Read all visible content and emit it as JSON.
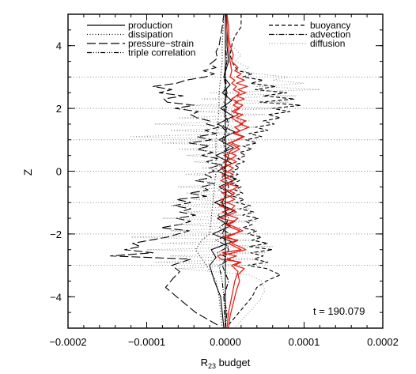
{
  "chart_data": {
    "type": "line",
    "orientation": "horizontal-profile",
    "xlabel_main": "R",
    "xlabel_sub": "23",
    "xlabel_rest": " budget",
    "ylabel": "Z",
    "xlim": [
      -0.0002,
      0.0002
    ],
    "ylim": [
      -5,
      5
    ],
    "x_ticks": [
      -0.0002,
      -0.0001,
      0.0,
      0.0001,
      0.0002
    ],
    "x_tick_labels": [
      "−0.0002",
      "−0.0001",
      "0.0000",
      "0.0001",
      "0.0002"
    ],
    "y_ticks": [
      -4,
      -2,
      0,
      2,
      4
    ],
    "y_tick_labels": [
      "−4",
      "−2",
      "0",
      "2",
      "4"
    ],
    "annotation": "t = 190.079",
    "legend_left": [
      {
        "name": "production",
        "dash": "solid"
      },
      {
        "name": "dissipation",
        "dash": "dotted"
      },
      {
        "name": "pressure−strain",
        "dash": "longdash"
      },
      {
        "name": "triple correlation",
        "dash": "dashdotdotdot"
      }
    ],
    "legend_right": [
      {
        "name": "buoyancy",
        "dash": "dashed"
      },
      {
        "name": "advection",
        "dash": "dashdot"
      },
      {
        "name": "diffusion",
        "dash": "dotted-grey"
      }
    ],
    "horizontal_reference_z": [
      -3,
      -2,
      -1,
      0,
      1,
      2,
      3
    ],
    "series": [
      {
        "name": "production",
        "color": "#000000",
        "z": [
          -5,
          -4.5,
          -4,
          -3.5,
          -3,
          -2.75,
          -2.5,
          -2.25,
          -2,
          -1.75,
          -1.5,
          -1.25,
          -1,
          -0.75,
          -0.5,
          -0.25,
          0,
          0.25,
          0.5,
          0.75,
          1,
          1.25,
          1.5,
          1.75,
          2,
          2.25,
          2.5,
          2.75,
          3,
          3.5,
          4,
          4.5,
          5
        ],
        "x": [
          -2e-06,
          -4e-06,
          -6e-06,
          -1.4e-05,
          -2e-05,
          -1.2e-05,
          -1.8e-05,
          8e-06,
          -1.6e-05,
          6e-06,
          -1e-05,
          1.2e-05,
          -1.4e-05,
          1e-05,
          -8e-06,
          1.4e-05,
          -1e-05,
          8e-06,
          -1.2e-05,
          1e-05,
          -8e-06,
          1.2e-05,
          -1e-05,
          1e-05,
          -6e-06,
          8e-06,
          -4e-06,
          6e-06,
          -2e-06,
          4e-06,
          2e-06,
          2e-06,
          1e-06
        ]
      },
      {
        "name": "dissipation",
        "color": "#000000",
        "z": [
          -5,
          -4,
          -3.5,
          -3,
          -2.5,
          -2.2,
          -2,
          -1.5,
          -1,
          -0.5,
          0,
          0.5,
          1,
          1.5,
          2,
          2.5,
          3,
          3.5,
          4,
          5
        ],
        "x": [
          -4e-06,
          -8e-06,
          -1.2e-05,
          -2.4e-05,
          -3.8e-05,
          -3e-05,
          -2e-05,
          -1.8e-05,
          -1.6e-05,
          -1.4e-05,
          -1.2e-05,
          -1.2e-05,
          -1.2e-05,
          -1e-05,
          -8e-06,
          -8e-06,
          -6e-06,
          -4e-06,
          -4e-06,
          -2e-06
        ]
      },
      {
        "name": "pressure−strain",
        "color": "#000000",
        "z": [
          -4.9,
          -4.5,
          -4,
          -3.7,
          -3.4,
          -3.2,
          -3,
          -2.8,
          -2.7,
          -2.6,
          -2.5,
          -2.4,
          -2.3,
          -2.2,
          -2.1,
          -2,
          -1.9,
          -1.8,
          -1.7,
          -1.6,
          -1.5,
          -1.4,
          -1.3,
          -1.2,
          -1.1,
          -1,
          -0.9,
          -0.8,
          -0.7,
          -0.6,
          -0.5,
          -0.4,
          -0.3,
          -0.2,
          -0.1,
          0,
          0.1,
          0.2,
          0.3,
          0.4,
          0.5,
          0.6,
          0.7,
          0.8,
          0.9,
          1,
          1.1,
          1.2,
          1.3,
          1.4,
          1.5,
          1.6,
          1.7,
          1.8,
          1.9,
          2,
          2.1,
          2.2,
          2.3,
          2.4,
          2.5,
          2.6,
          2.7,
          2.8,
          2.9,
          3,
          3.1,
          3.2,
          3.3,
          3.4,
          3.6,
          3.8,
          4,
          4.3,
          4.6,
          5
        ],
        "x": [
          -1e-05,
          -3.8e-05,
          -6.2e-05,
          -7.6e-05,
          -6.6e-05,
          -5.8e-05,
          -6.8e-05,
          -4.4e-05,
          -0.000146,
          -9.2e-05,
          -0.000128,
          -0.000108,
          -0.000118,
          -9.6e-05,
          -7.4e-05,
          -6e-05,
          -4.6e-05,
          -8.2e-05,
          -5.8e-05,
          -4.4e-05,
          -6.2e-05,
          -3.8e-05,
          -5.8e-05,
          -4.4e-05,
          -6.6e-05,
          -4.4e-05,
          -6.2e-05,
          -2.4e-05,
          -4.6e-05,
          -2.2e-05,
          -3e-05,
          -1.4e-05,
          -3.8e-05,
          -1.8e-05,
          -2.6e-05,
          -1.4e-05,
          -2e-05,
          -6e-06,
          -2.4e-05,
          -1e-05,
          -3e-05,
          -1.6e-05,
          -3.6e-05,
          -2e-05,
          -4.6e-05,
          -1.8e-05,
          -3.6e-05,
          -1.2e-05,
          -2.6e-05,
          -8e-06,
          -2.4e-05,
          -2e-05,
          -3.6e-05,
          -4.4e-05,
          -3.4e-05,
          -6.4e-05,
          -4e-05,
          -7.4e-05,
          -7.8e-05,
          -5.4e-05,
          -8.4e-05,
          -6.8e-05,
          -9.2e-05,
          -6.2e-05,
          -5e-05,
          -2.6e-05,
          -1.4e-05,
          -2.8e-05,
          -1.2e-05,
          -2e-05,
          -1e-05,
          -1.2e-05,
          -8e-06,
          -6e-06,
          -4e-06,
          -2e-06
        ]
      },
      {
        "name": "triple correlation",
        "color": "#000000",
        "z": [
          -5,
          -4,
          -3.5,
          -3,
          -2.8,
          -2.6,
          -2.4,
          -2.2,
          -2,
          -1.8,
          -1.6,
          -1.4,
          -1.2,
          -1,
          -0.8,
          -0.6,
          -0.4,
          -0.2,
          0,
          0.2,
          0.4,
          0.6,
          0.8,
          1,
          1.2,
          1.4,
          1.6,
          1.8,
          2,
          2.2,
          2.4,
          2.6,
          2.8,
          3,
          3.5,
          4,
          5
        ],
        "x": [
          0,
          -2e-06,
          -4e-06,
          -8e-06,
          6e-06,
          -1e-05,
          4e-06,
          -1.2e-05,
          6e-06,
          -8e-06,
          2e-06,
          -1e-05,
          4e-06,
          -6e-06,
          2e-06,
          -8e-06,
          4e-06,
          -4e-06,
          2e-06,
          -6e-06,
          4e-06,
          -4e-06,
          6e-06,
          -2e-06,
          4e-06,
          -4e-06,
          2e-06,
          -2e-06,
          2e-06,
          -2e-06,
          2e-06,
          -2e-06,
          1e-06,
          -1e-06,
          0,
          0,
          0
        ]
      },
      {
        "name": "buoyancy",
        "color": "#000000",
        "z": [
          -4.9,
          -4.6,
          -4.3,
          -4,
          -3.7,
          -3.5,
          -3.3,
          -3.1,
          -3,
          -2.9,
          -2.8,
          -2.7,
          -2.6,
          -2.5,
          -2.4,
          -2.3,
          -2.2,
          -2.1,
          -2,
          -1.9,
          -1.8,
          -1.7,
          -1.6,
          -1.5,
          -1.4,
          -1.3,
          -1.2,
          -1.1,
          -1,
          -0.9,
          -0.8,
          -0.7,
          -0.6,
          -0.5,
          -0.4,
          -0.3,
          -0.2,
          -0.1,
          0,
          0.1,
          0.2,
          0.3,
          0.4,
          0.5,
          0.6,
          0.7,
          0.8,
          0.9,
          1,
          1.1,
          1.2,
          1.3,
          1.4,
          1.5,
          1.6,
          1.7,
          1.8,
          1.9,
          2,
          2.1,
          2.2,
          2.3,
          2.4,
          2.5,
          2.6,
          2.7,
          2.8,
          2.9,
          3,
          3.1,
          3.2,
          3.4,
          3.7,
          4,
          4.3,
          4.6,
          5
        ],
        "x": [
          4e-06,
          1.4e-05,
          2.4e-05,
          3.4e-05,
          4e-05,
          5.2e-05,
          7e-05,
          5.2e-05,
          2.8e-05,
          5.4e-05,
          3.6e-05,
          4.8e-05,
          3.2e-05,
          6e-05,
          3e-05,
          5.4e-05,
          3.4e-05,
          4.6e-05,
          2.8e-05,
          4e-05,
          2.2e-05,
          3.4e-05,
          2.6e-05,
          4.2e-05,
          2.2e-05,
          3.6e-05,
          1.8e-05,
          3.2e-05,
          1.4e-05,
          2.4e-05,
          1e-05,
          2.2e-05,
          1.2e-05,
          2e-05,
          8e-06,
          1.8e-05,
          6e-06,
          1.6e-05,
          8e-06,
          1.8e-05,
          1.2e-05,
          2.4e-05,
          1.6e-05,
          2.6e-05,
          1.8e-05,
          3.4e-05,
          2.2e-05,
          4e-05,
          2.6e-05,
          4.6e-05,
          3e-05,
          5.4e-05,
          3.8e-05,
          6.2e-05,
          4.8e-05,
          7e-05,
          5.4e-05,
          8.2e-05,
          6e-05,
          9.6e-05,
          4.4e-05,
          8.8e-05,
          4.8e-05,
          7.8e-05,
          3.8e-05,
          6.4e-05,
          3.2e-05,
          4.8e-05,
          2.2e-05,
          3.4e-05,
          1.6e-05,
          1e-05,
          6e-06,
          8e-06,
          1.2e-05,
          2e-05,
          2e-05
        ]
      },
      {
        "name": "advection",
        "color": "#000000",
        "z": [
          -5,
          -4.5,
          -4,
          -3.5,
          -3,
          -2.5,
          -2,
          -1.5,
          -1,
          -0.5,
          0,
          0.5,
          1,
          1.5,
          2,
          2.5,
          3,
          3.5,
          4,
          4.5,
          5
        ],
        "x": [
          0,
          2e-06,
          -2e-06,
          4e-06,
          -4e-06,
          4e-06,
          -4e-06,
          4e-06,
          -4e-06,
          4e-06,
          -2e-06,
          4e-06,
          -4e-06,
          4e-06,
          -2e-06,
          2e-06,
          -2e-06,
          2e-06,
          0,
          0,
          0
        ]
      },
      {
        "name": "diffusion",
        "color": "#999999",
        "z": [
          -5,
          -4.7,
          -4.4,
          -4.1,
          -3.8,
          -3.5,
          -3.3,
          -3.1,
          -3,
          -2.9,
          -2.8,
          -2.7,
          -2.6,
          -2.5,
          -2.4,
          -2.3,
          -2.2,
          -2.1,
          -2,
          -1.9,
          -1.8,
          -1.7,
          -1.6,
          -1.5,
          -1.4,
          -1.3,
          -1.2,
          -1.1,
          -1,
          -0.9,
          -0.8,
          -0.7,
          -0.6,
          -0.5,
          -0.4,
          -0.3,
          -0.2,
          -0.1,
          0,
          0.1,
          0.2,
          0.3,
          0.4,
          0.5,
          0.6,
          0.7,
          0.8,
          0.9,
          1,
          1.1,
          1.2,
          1.3,
          1.4,
          1.5,
          1.6,
          1.7,
          1.8,
          1.9,
          2,
          2.1,
          2.2,
          2.3,
          2.4,
          2.5,
          2.6,
          2.7,
          2.8,
          2.9,
          3,
          3.1,
          3.2,
          3.3,
          3.5,
          3.7,
          4,
          4.3,
          4.6,
          5
        ],
        "x": [
          1.2e-05,
          2.2e-05,
          3.4e-05,
          4.4e-05,
          5e-05,
          4.6e-05,
          3e-05,
          -6e-05,
          3e-05,
          -9e-05,
          4e-05,
          -7e-05,
          5e-05,
          -0.0001,
          6e-05,
          -8e-05,
          4e-05,
          -0.00012,
          3e-05,
          -7e-05,
          2e-05,
          -6e-05,
          4e-05,
          -8e-05,
          2e-05,
          -5e-05,
          3e-05,
          -7e-05,
          2e-05,
          -4e-05,
          1e-05,
          -5e-05,
          2e-05,
          -6e-05,
          1.4e-05,
          -4e-05,
          1e-05,
          -5e-05,
          1.2e-05,
          -3e-05,
          1e-05,
          -4e-05,
          2e-05,
          -5e-05,
          1.4e-05,
          -6e-05,
          2.4e-05,
          -8e-05,
          3e-05,
          -0.00012,
          2e-05,
          -7e-05,
          4e-05,
          -9e-05,
          3e-05,
          -6e-05,
          5e-05,
          -4e-05,
          7e-05,
          -5e-05,
          8e-05,
          -3e-05,
          9e-05,
          -2e-05,
          0.00012,
          4e-05,
          0.0001,
          6e-05,
          8e-05,
          4e-05,
          2e-05,
          3e-05,
          1.2e-05,
          2e-05,
          8e-06,
          6e-06,
          4e-06,
          2e-06
        ]
      },
      {
        "name": "",
        "color": "#e2231a",
        "z": [
          -5,
          -4.6,
          -4.2,
          -3.8,
          -3.5,
          -3.3,
          -3.1,
          -3,
          -2.9,
          -2.8,
          -2.7,
          -2.6,
          -2.5,
          -2.4,
          -2.3,
          -2.2,
          -2.1,
          -2,
          -1.9,
          -1.8,
          -1.7,
          -1.6,
          -1.5,
          -1.4,
          -1.3,
          -1.2,
          -1.1,
          -1,
          -0.9,
          -0.8,
          -0.7,
          -0.6,
          -0.5,
          -0.4,
          -0.3,
          -0.2,
          -0.1,
          0,
          0.1,
          0.2,
          0.3,
          0.4,
          0.5,
          0.6,
          0.7,
          0.8,
          0.9,
          1,
          1.1,
          1.2,
          1.3,
          1.4,
          1.5,
          1.6,
          1.7,
          1.8,
          1.9,
          2,
          2.1,
          2.2,
          2.3,
          2.4,
          2.5,
          2.6,
          2.7,
          2.8,
          2.9,
          3,
          3.1,
          3.2,
          3.3,
          3.5,
          3.7,
          4,
          4.3,
          4.6,
          5
        ],
        "x": [
          4e-06,
          6e-06,
          1e-05,
          1.4e-05,
          1.8e-05,
          1.6e-05,
          2.4e-05,
          1.2e-05,
          2e-05,
          -6e-06,
          -1e-05,
          1e-05,
          2.6e-05,
          1.8e-05,
          8e-06,
          1.6e-05,
          -4e-06,
          1e-05,
          2.2e-05,
          1.4e-05,
          4e-06,
          1.2e-05,
          -6e-06,
          4e-06,
          1.4e-05,
          4e-06,
          -8e-06,
          2e-06,
          1.2e-05,
          6e-06,
          -4e-06,
          8e-06,
          1.6e-05,
          4e-06,
          -6e-06,
          2e-06,
          1e-05,
          0,
          -6e-06,
          4e-06,
          1.4e-05,
          6e-06,
          -2e-06,
          1e-05,
          1.8e-05,
          1.2e-05,
          4e-06,
          1.6e-05,
          2.4e-05,
          1.2e-05,
          2e-05,
          3e-05,
          1.8e-05,
          2.6e-05,
          1.4e-05,
          2.2e-05,
          8e-06,
          1.6e-05,
          2.2e-05,
          1.2e-05,
          2.4e-05,
          1.4e-05,
          2.6e-05,
          1.6e-05,
          2.8e-05,
          1.4e-05,
          2.4e-05,
          1.4e-05,
          2e-05,
          1.2e-05,
          1.6e-05,
          8e-06,
          1e-05,
          6e-06,
          4e-06,
          4e-06,
          2e-06
        ]
      },
      {
        "name": "",
        "color": "#e2231a",
        "z": [
          -5,
          -4.5,
          -4,
          -3.5,
          -3.2,
          -3,
          -2.9,
          -2.8,
          -2.7,
          -2.6,
          -2.5,
          -2.4,
          -2.3,
          -2.2,
          -2.1,
          -2,
          -1.9,
          -1.8,
          -1.7,
          -1.6,
          -1.5,
          -1.4,
          -1.3,
          -1.2,
          -1.1,
          -1,
          -0.9,
          -0.8,
          -0.7,
          -0.6,
          -0.5,
          -0.4,
          -0.3,
          -0.2,
          -0.1,
          0,
          0.1,
          0.2,
          0.3,
          0.4,
          0.5,
          0.6,
          0.7,
          0.8,
          0.9,
          1,
          1.1,
          1.2,
          1.3,
          1.4,
          1.5,
          1.6,
          1.7,
          1.8,
          1.9,
          2,
          2.1,
          2.2,
          2.3,
          2.4,
          2.5,
          2.6,
          2.7,
          2.8,
          2.9,
          3,
          3.2,
          3.5,
          4,
          4.5,
          5
        ],
        "x": [
          2e-06,
          4e-06,
          8e-06,
          1.2e-05,
          1.6e-05,
          8e-06,
          1.8e-05,
          2e-06,
          1.4e-05,
          -4e-06,
          2e-05,
          1.2e-05,
          4e-06,
          1.4e-05,
          2e-06,
          1.2e-05,
          1.8e-05,
          8e-06,
          0,
          1e-05,
          1.6e-05,
          4e-06,
          -4e-06,
          8e-06,
          1.2e-05,
          2e-06,
          -6e-06,
          6e-06,
          1.2e-05,
          2e-06,
          -4e-06,
          6e-06,
          1e-05,
          0,
          -4e-06,
          4e-06,
          1e-05,
          2e-06,
          -2e-06,
          8e-06,
          1.4e-05,
          4e-06,
          1e-05,
          1.8e-05,
          8e-06,
          1.4e-05,
          2.2e-05,
          1e-05,
          1.8e-05,
          1.2e-05,
          2.2e-05,
          1.4e-05,
          8e-06,
          1.6e-05,
          1.2e-05,
          1.8e-05,
          1e-05,
          1.6e-05,
          8e-06,
          1.4e-05,
          1.8e-05,
          1e-05,
          1.4e-05,
          8e-06,
          1.2e-05,
          6e-06,
          8e-06,
          6e-06,
          4e-06,
          2e-06,
          2e-06
        ]
      }
    ]
  }
}
